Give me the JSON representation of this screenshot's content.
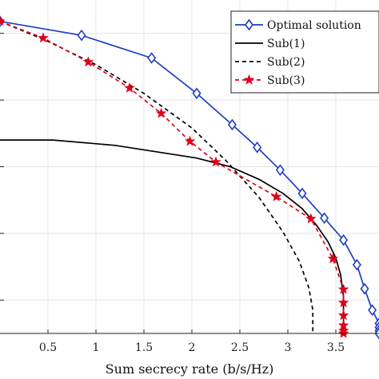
{
  "chart_data": {
    "type": "line",
    "xlabel": "Sum secrecy rate (b/s/Hz)",
    "ylabel": "",
    "xlim": [
      0,
      3.95
    ],
    "ylim": [
      0,
      5
    ],
    "xticks": [
      0.5,
      1,
      1.5,
      2,
      2.5,
      3,
      3.5
    ],
    "xtick_labels": [
      "0.5",
      "1",
      "1.5",
      "2",
      "2.5",
      "3",
      "3.5"
    ],
    "yticks": [
      0.5,
      1.5,
      2.5,
      3.5,
      4.5
    ],
    "grid": true,
    "legend_position": "top-right",
    "series": [
      {
        "name": "Optimal solution",
        "color": "#1f3fbf",
        "style": "solid",
        "marker": "diamond",
        "x": [
          0.0,
          0.85,
          1.58,
          2.05,
          2.42,
          2.68,
          2.92,
          3.15,
          3.38,
          3.58,
          3.72,
          3.8,
          3.88,
          3.95,
          3.95,
          3.95,
          3.95
        ],
        "y": [
          4.68,
          4.47,
          4.13,
          3.6,
          3.13,
          2.79,
          2.45,
          2.1,
          1.73,
          1.4,
          1.03,
          0.67,
          0.35,
          0.15,
          0.09,
          0.04,
          0.0
        ]
      },
      {
        "name": "Sub(1)",
        "color": "#000000",
        "style": "solid",
        "marker": "none",
        "x": [
          0.0,
          0.55,
          1.2,
          2.05,
          2.4,
          2.7,
          2.95,
          3.15,
          3.3,
          3.42,
          3.5,
          3.55,
          3.58,
          3.58,
          3.58
        ],
        "y": [
          2.9,
          2.9,
          2.82,
          2.63,
          2.5,
          2.31,
          2.1,
          1.87,
          1.62,
          1.37,
          1.13,
          0.88,
          0.55,
          0.25,
          0.0
        ]
      },
      {
        "name": "Sub(2)",
        "color": "#000000",
        "style": "dashed",
        "marker": "none",
        "x": [
          0.0,
          0.5,
          1.0,
          1.5,
          2.0,
          2.35,
          2.7,
          2.95,
          3.12,
          3.22,
          3.26,
          3.26
        ],
        "y": [
          4.68,
          4.38,
          4.03,
          3.6,
          3.08,
          2.6,
          2.04,
          1.52,
          1.08,
          0.68,
          0.35,
          0.0
        ]
      },
      {
        "name": "Sub(3)",
        "color": "#e0001b",
        "style": "dashed",
        "marker": "star",
        "x": [
          0.0,
          0.45,
          0.92,
          1.35,
          1.68,
          1.98,
          2.25,
          2.88,
          3.24,
          3.47,
          3.58,
          3.58,
          3.58,
          3.58,
          3.58,
          3.58
        ],
        "y": [
          4.68,
          4.43,
          4.07,
          3.68,
          3.3,
          2.88,
          2.57,
          2.05,
          1.72,
          1.12,
          0.66,
          0.46,
          0.27,
          0.12,
          0.04,
          0.0
        ]
      }
    ]
  }
}
